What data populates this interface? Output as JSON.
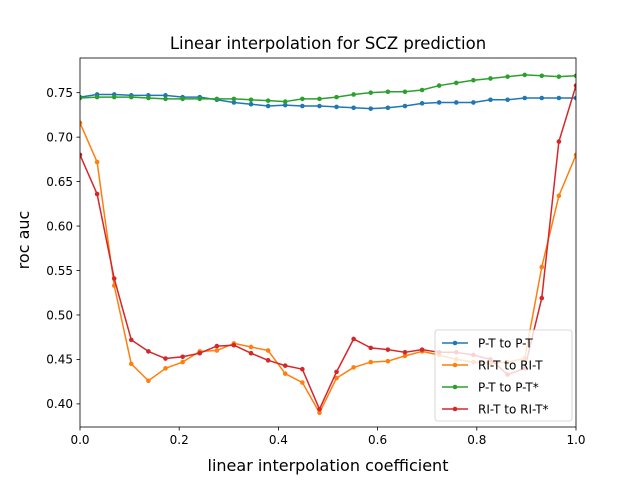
{
  "chart_data": {
    "type": "line",
    "title": "Linear interpolation for SCZ prediction",
    "xlabel": "linear interpolation coefficient",
    "ylabel": "roc auc",
    "xlim": [
      0.0,
      1.0
    ],
    "ylim": [
      0.374,
      0.789
    ],
    "xticks": [
      0.0,
      0.2,
      0.4,
      0.6,
      0.8,
      1.0
    ],
    "xtick_labels": [
      "0.0",
      "0.2",
      "0.4",
      "0.6",
      "0.8",
      "1.0"
    ],
    "yticks": [
      0.4,
      0.45,
      0.5,
      0.55,
      0.6,
      0.65,
      0.7,
      0.75
    ],
    "ytick_labels": [
      "0.40",
      "0.45",
      "0.50",
      "0.55",
      "0.60",
      "0.65",
      "0.70",
      "0.75"
    ],
    "grid": false,
    "legend_position": "lower-right",
    "x": [
      0.0,
      0.0345,
      0.069,
      0.1034,
      0.1379,
      0.1724,
      0.2069,
      0.2414,
      0.2759,
      0.3103,
      0.3448,
      0.3793,
      0.4138,
      0.4483,
      0.4828,
      0.5172,
      0.5517,
      0.5862,
      0.6207,
      0.6552,
      0.6897,
      0.7241,
      0.7586,
      0.7931,
      0.8276,
      0.8621,
      0.8966,
      0.931,
      0.9655,
      1.0
    ],
    "series": [
      {
        "name": "P-T to P-T",
        "color": "#1f77b4",
        "values": [
          0.745,
          0.748,
          0.748,
          0.747,
          0.747,
          0.747,
          0.745,
          0.745,
          0.742,
          0.739,
          0.737,
          0.735,
          0.736,
          0.735,
          0.735,
          0.734,
          0.733,
          0.732,
          0.733,
          0.735,
          0.738,
          0.739,
          0.739,
          0.739,
          0.742,
          0.742,
          0.744,
          0.744,
          0.744,
          0.744
        ]
      },
      {
        "name": "RI-T to RI-T",
        "color": "#ff7f0e",
        "values": [
          0.716,
          0.672,
          0.533,
          0.445,
          0.426,
          0.44,
          0.447,
          0.459,
          0.46,
          0.468,
          0.464,
          0.46,
          0.434,
          0.424,
          0.39,
          0.429,
          0.441,
          0.447,
          0.448,
          0.454,
          0.459,
          0.455,
          0.45,
          0.447,
          0.446,
          0.447,
          0.451,
          0.554,
          0.634,
          0.68
        ]
      },
      {
        "name": "P-T to P-T*",
        "color": "#2ca02c",
        "values": [
          0.744,
          0.745,
          0.745,
          0.745,
          0.744,
          0.743,
          0.743,
          0.743,
          0.743,
          0.743,
          0.742,
          0.741,
          0.74,
          0.743,
          0.743,
          0.745,
          0.748,
          0.75,
          0.751,
          0.751,
          0.753,
          0.758,
          0.761,
          0.764,
          0.766,
          0.768,
          0.77,
          0.769,
          0.768,
          0.769
        ]
      },
      {
        "name": "RI-T to RI-T*",
        "color": "#d62728",
        "values": [
          0.68,
          0.636,
          0.541,
          0.472,
          0.459,
          0.451,
          0.453,
          0.457,
          0.465,
          0.466,
          0.457,
          0.449,
          0.443,
          0.439,
          0.394,
          0.436,
          0.473,
          0.463,
          0.461,
          0.458,
          0.461,
          0.458,
          0.458,
          0.455,
          0.45,
          0.433,
          0.44,
          0.519,
          0.695,
          0.758
        ]
      }
    ]
  }
}
